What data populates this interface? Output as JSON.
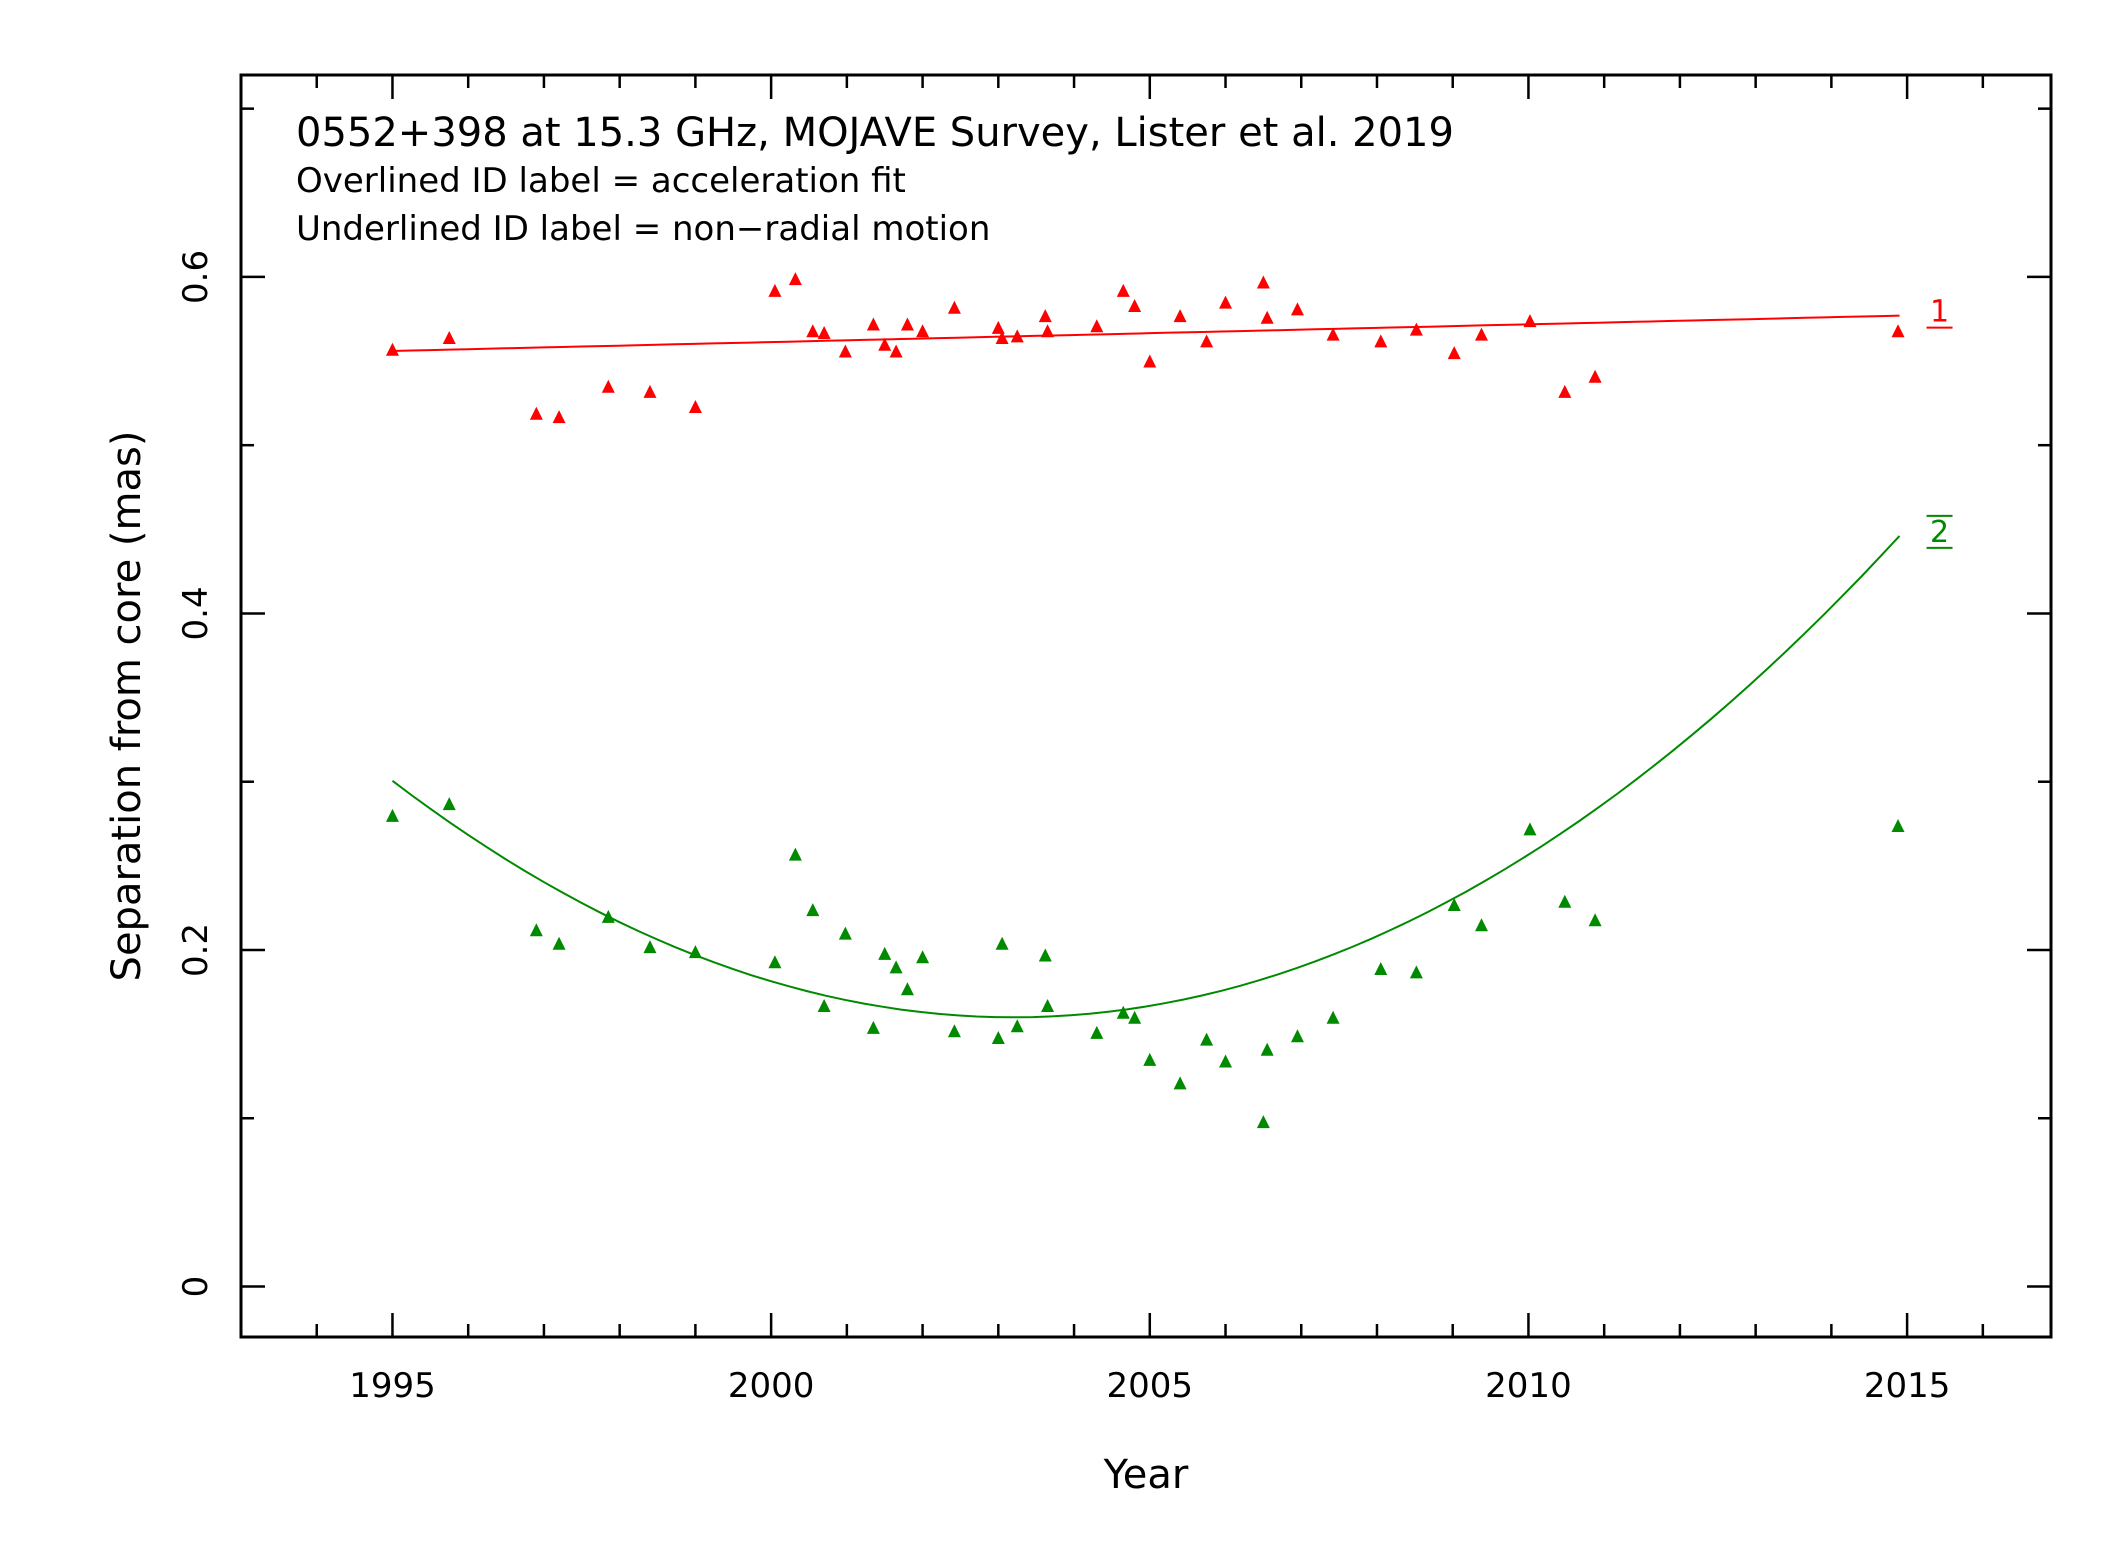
{
  "chart_data": {
    "type": "scatter",
    "title": "0552+398 at 15.3 GHz, MOJAVE Survey, Lister et al. 2019",
    "notes": [
      "Overlined ID label = acceleration fit",
      "Underlined ID label = non−radial motion"
    ],
    "xlabel": "Year",
    "ylabel": "Separation from core (mas)",
    "xlim": [
      1993.0,
      2016.9
    ],
    "ylim": [
      -0.03,
      0.72
    ],
    "xticks": [
      1995,
      2000,
      2005,
      2010,
      2015
    ],
    "xtick_labels": [
      "1995",
      "2000",
      "2005",
      "2010",
      "2015"
    ],
    "yticks": [
      0,
      0.2,
      0.4,
      0.6
    ],
    "ytick_labels": [
      "0",
      "0.2",
      "0.4",
      "0.6"
    ],
    "series": [
      {
        "name": "1",
        "label_style": "underline",
        "color": "#ff0000",
        "fit": {
          "type": "linear",
          "x": [
            1995.0,
            2014.9
          ],
          "y": [
            0.556,
            0.577
          ]
        },
        "x": [
          1995.0,
          1995.75,
          1996.9,
          1997.2,
          1997.85,
          1998.4,
          1999.0,
          2000.05,
          2000.32,
          2000.55,
          2000.7,
          2000.98,
          2001.35,
          2001.5,
          2001.65,
          2001.8,
          2002.0,
          2002.42,
          2003.0,
          2003.05,
          2003.25,
          2003.62,
          2003.65,
          2004.3,
          2004.65,
          2004.8,
          2005.0,
          2005.4,
          2005.75,
          2006.0,
          2006.5,
          2006.55,
          2006.95,
          2007.42,
          2008.05,
          2008.52,
          2009.02,
          2009.38,
          2010.02,
          2010.48,
          2010.88,
          2014.88
        ],
        "y": [
          0.557,
          0.564,
          0.519,
          0.517,
          0.535,
          0.532,
          0.523,
          0.592,
          0.599,
          0.568,
          0.567,
          0.556,
          0.572,
          0.56,
          0.556,
          0.572,
          0.568,
          0.582,
          0.57,
          0.564,
          0.565,
          0.577,
          0.568,
          0.571,
          0.592,
          0.583,
          0.55,
          0.577,
          0.562,
          0.585,
          0.597,
          0.576,
          0.581,
          0.566,
          0.562,
          0.569,
          0.555,
          0.566,
          0.574,
          0.532,
          0.541,
          0.568
        ]
      },
      {
        "name": "2",
        "label_style": "overline",
        "color": "#008a00",
        "fit": {
          "type": "quadratic",
          "vertex_x": 2003.2,
          "vertex_y": 0.16,
          "a": 0.00209,
          "x": [
            1995.0,
            2014.9
          ]
        },
        "x": [
          1995.0,
          1995.75,
          1996.9,
          1997.2,
          1997.85,
          1998.4,
          1999.0,
          2000.05,
          2000.32,
          2000.55,
          2000.7,
          2000.98,
          2001.35,
          2001.5,
          2001.65,
          2001.8,
          2002.0,
          2002.42,
          2003.0,
          2003.05,
          2003.25,
          2003.62,
          2003.65,
          2004.3,
          2004.65,
          2004.8,
          2005.0,
          2005.4,
          2005.75,
          2006.0,
          2006.5,
          2006.55,
          2006.95,
          2007.42,
          2008.05,
          2008.52,
          2009.02,
          2009.38,
          2010.02,
          2010.48,
          2010.88,
          2014.88
        ],
        "y": [
          0.28,
          0.287,
          0.212,
          0.204,
          0.22,
          0.202,
          0.199,
          0.193,
          0.257,
          0.224,
          0.167,
          0.21,
          0.154,
          0.198,
          0.19,
          0.177,
          0.196,
          0.152,
          0.148,
          0.204,
          0.155,
          0.197,
          0.167,
          0.151,
          0.163,
          0.16,
          0.135,
          0.121,
          0.147,
          0.134,
          0.098,
          0.141,
          0.149,
          0.16,
          0.189,
          0.187,
          0.227,
          0.215,
          0.272,
          0.229,
          0.218,
          0.274
        ]
      }
    ]
  }
}
